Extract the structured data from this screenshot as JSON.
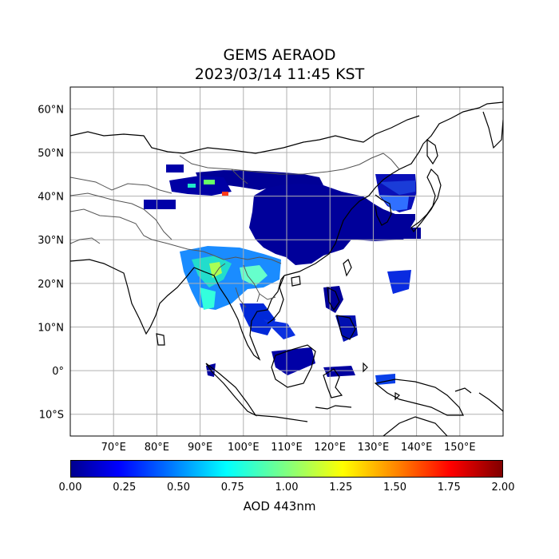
{
  "title": {
    "line1": "GEMS AERAOD",
    "line2": "2023/03/14 11:45 KST"
  },
  "map": {
    "projection": "PlateCarree",
    "extent_lon": [
      60,
      160
    ],
    "extent_lat": [
      -15,
      65
    ],
    "gridlines": true,
    "lon_ticks": [
      {
        "value": 70,
        "label": "70°E"
      },
      {
        "value": 80,
        "label": "80°E"
      },
      {
        "value": 90,
        "label": "90°E"
      },
      {
        "value": 100,
        "label": "100°E"
      },
      {
        "value": 110,
        "label": "110°E"
      },
      {
        "value": 120,
        "label": "120°E"
      },
      {
        "value": 130,
        "label": "130°E"
      },
      {
        "value": 140,
        "label": "140°E"
      },
      {
        "value": 150,
        "label": "150°E"
      }
    ],
    "lat_ticks": [
      {
        "value": 60,
        "label": "60°N"
      },
      {
        "value": 50,
        "label": "50°N"
      },
      {
        "value": 40,
        "label": "40°N"
      },
      {
        "value": 30,
        "label": "30°N"
      },
      {
        "value": 20,
        "label": "20°N"
      },
      {
        "value": 10,
        "label": "10°N"
      },
      {
        "value": 0,
        "label": "0°"
      },
      {
        "value": -10,
        "label": "10°S"
      }
    ]
  },
  "colorbar": {
    "label": "AOD 443nm",
    "colormap": "jet",
    "range": [
      0.0,
      2.0
    ],
    "ticks": [
      "0.00",
      "0.25",
      "0.50",
      "0.75",
      "1.00",
      "1.25",
      "1.50",
      "1.75",
      "2.00"
    ]
  },
  "colors": {
    "grid": "#b0b0b0",
    "coastline": "#000000",
    "borders": "#555555",
    "low_aod": "#00008f",
    "mid_aod": "#22ddcc"
  }
}
